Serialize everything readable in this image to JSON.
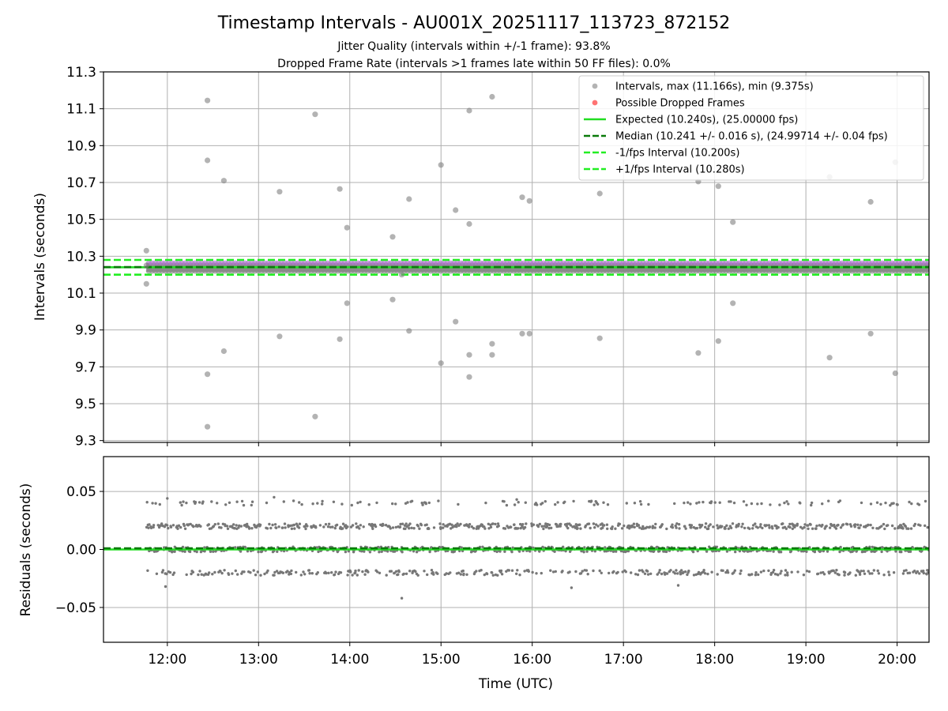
{
  "chart_data": [
    {
      "type": "scatter",
      "title": "Timestamp Intervals - AU001X_20251117_113723_872152",
      "subtitles": [
        "Jitter Quality (intervals within +/-1 frame): 93.8%",
        "Dropped Frame Rate (intervals >1 frames late within 50 FF files): 0.0%"
      ],
      "xlabel": "",
      "ylabel": "Intervals (seconds)",
      "xlim": [
        11.3,
        20.35
      ],
      "ylim": [
        9.29,
        11.3
      ],
      "yticks": [
        9.3,
        9.5,
        9.7,
        9.9,
        10.1,
        10.3,
        10.5,
        10.7,
        10.9,
        11.1,
        11.3
      ],
      "grid": true,
      "legend_position": "top-right",
      "legend": [
        "Intervals, max (11.166s), min (9.375s)",
        "Possible Dropped Frames",
        "Expected (10.240s), (25.00000 fps)",
        "Median (10.241 +/- 0.016 s), (24.99714 +/- 0.04 fps)",
        "-1/fps Interval (10.200s)",
        "+1/fps Interval (10.280s)"
      ],
      "band": {
        "x_start": 11.77,
        "x_end": 20.35,
        "y_low": 10.215,
        "y_high": 10.265,
        "dot_rows": [
          10.262,
          10.24,
          10.22
        ]
      },
      "lines": [
        {
          "name": "Expected",
          "y": 10.24,
          "color": "#22dd22",
          "style": "solid"
        },
        {
          "name": "Median",
          "y": 10.241,
          "color": "#0a7a0a",
          "style": "dashed"
        },
        {
          "name": "-1/fps",
          "y": 10.2,
          "color": "#22ee22",
          "style": "dashed"
        },
        {
          "name": "+1/fps",
          "y": 10.28,
          "color": "#22ee22",
          "style": "dashed"
        }
      ],
      "outliers": [
        [
          11.77,
          10.33
        ],
        [
          11.77,
          10.15
        ],
        [
          11.77,
          10.25
        ],
        [
          12.44,
          11.145
        ],
        [
          12.44,
          10.82
        ],
        [
          12.44,
          9.66
        ],
        [
          12.44,
          9.375
        ],
        [
          12.62,
          10.71
        ],
        [
          12.62,
          9.785
        ],
        [
          13.23,
          10.65
        ],
        [
          13.23,
          9.865
        ],
        [
          13.62,
          11.07
        ],
        [
          13.62,
          9.43
        ],
        [
          13.89,
          10.665
        ],
        [
          13.89,
          9.85
        ],
        [
          13.97,
          10.455
        ],
        [
          13.97,
          10.045
        ],
        [
          14.47,
          10.405
        ],
        [
          14.47,
          10.065
        ],
        [
          14.57,
          10.2
        ],
        [
          14.65,
          10.61
        ],
        [
          14.65,
          9.895
        ],
        [
          15.0,
          10.795
        ],
        [
          15.0,
          9.72
        ],
        [
          15.16,
          10.55
        ],
        [
          15.16,
          9.945
        ],
        [
          15.31,
          11.09
        ],
        [
          15.31,
          10.475
        ],
        [
          15.31,
          9.765
        ],
        [
          15.31,
          9.645
        ],
        [
          15.56,
          11.165
        ],
        [
          15.56,
          9.825
        ],
        [
          15.56,
          9.765
        ],
        [
          15.89,
          10.62
        ],
        [
          15.89,
          9.88
        ],
        [
          15.97,
          10.6
        ],
        [
          15.97,
          9.88
        ],
        [
          16.74,
          10.64
        ],
        [
          16.74,
          9.855
        ],
        [
          17.82,
          10.705
        ],
        [
          17.82,
          9.775
        ],
        [
          18.04,
          10.68
        ],
        [
          18.04,
          9.84
        ],
        [
          18.2,
          10.485
        ],
        [
          18.2,
          10.045
        ],
        [
          19.26,
          10.73
        ],
        [
          19.26,
          9.75
        ],
        [
          19.71,
          10.595
        ],
        [
          19.71,
          9.88
        ],
        [
          19.98,
          10.81
        ],
        [
          19.98,
          9.665
        ]
      ],
      "colors": {
        "points": "#808080",
        "band": "#7a7a7a",
        "edge": "#b07ad0",
        "dropped": "#ff5a5a"
      }
    },
    {
      "type": "scatter",
      "title": "",
      "xlabel": "Time (UTC)",
      "ylabel": "Residuals (seconds)",
      "xlim": [
        11.3,
        20.35
      ],
      "ylim": [
        -0.08,
        0.08
      ],
      "yticks": [
        -0.05,
        0.0,
        0.05
      ],
      "ytick_labels": [
        "−0.05",
        "0.00",
        "0.05"
      ],
      "xticks": [
        12,
        13,
        14,
        15,
        16,
        17,
        18,
        19,
        20
      ],
      "xtick_labels": [
        "12:00",
        "13:00",
        "14:00",
        "15:00",
        "16:00",
        "17:00",
        "18:00",
        "19:00",
        "20:00"
      ],
      "grid": true,
      "residual_levels": [
        -0.02,
        0.0,
        0.02,
        0.04
      ],
      "residual_x_start": 11.77,
      "residual_extremes": [
        [
          11.98,
          -0.032
        ],
        [
          14.57,
          -0.042
        ],
        [
          13.17,
          0.045
        ],
        [
          15.83,
          0.043
        ],
        [
          16.43,
          -0.033
        ],
        [
          17.6,
          -0.031
        ],
        [
          12.0,
          0.044
        ]
      ],
      "lines": [
        {
          "name": "Expected",
          "y": 0.0,
          "color": "#22dd22",
          "style": "solid"
        },
        {
          "name": "Median",
          "y": 0.001,
          "color": "#0a7a0a",
          "style": "dashed"
        }
      ]
    }
  ]
}
